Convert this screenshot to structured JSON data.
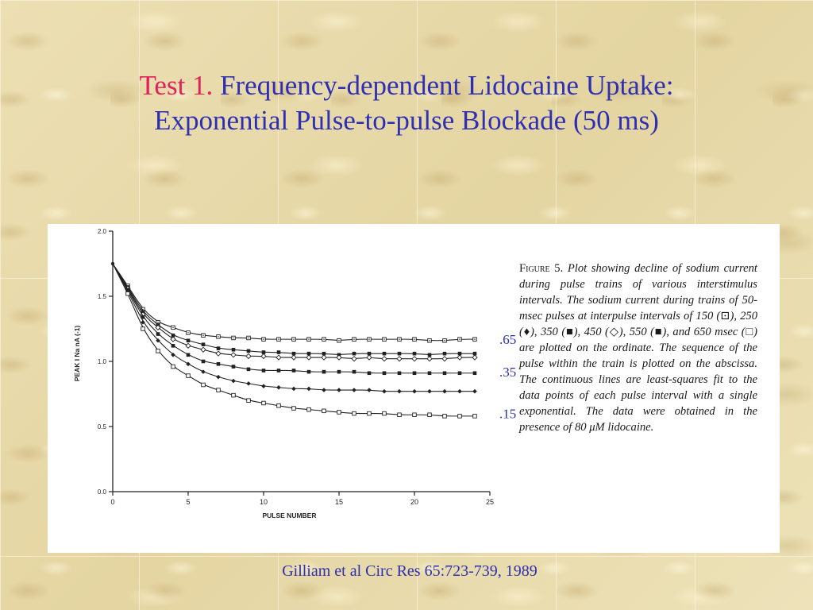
{
  "title": {
    "prefix": "Test 1.",
    "line1": "Frequency-dependent Lidocaine Uptake:",
    "line2": "Exponential Pulse-to-pulse Blockade  (50 ms)"
  },
  "figure": {
    "caption_lead": "Figure 5.",
    "caption_body": "Plot showing decline of sodium current during pulse trains of various interstimulus intervals. The sodium current during trains of 50-msec pulses at interpulse intervals of 150 (⊡), 250 (♦), 350 (■), 450 (◇), 550 (■), and 650 msec (□) are plotted on the ordinate. The sequence of the pulse within the train is plotted on the abscissa. The continuous lines are least-squares fit to the data points of each pulse interval with a single exponential. The data were obtained in the presence of 80 μM lidocaine."
  },
  "chart_data": {
    "type": "line",
    "xlabel": "PULSE NUMBER",
    "ylabel": "PEAK   I Na  nA (-1)",
    "xlim": [
      0,
      25
    ],
    "ylim": [
      0,
      2.0
    ],
    "xticks": [
      0,
      5,
      10,
      15,
      20,
      25
    ],
    "yticks": [
      0.0,
      0.5,
      1.0,
      1.5,
      2.0
    ],
    "xtick_labels": [
      "0",
      "5",
      "10",
      "15",
      "20",
      "25"
    ],
    "ytick_labels": [
      "0.0",
      "0.5",
      "1.0",
      "1.5",
      "2.0"
    ],
    "x": [
      1,
      2,
      3,
      4,
      5,
      6,
      7,
      8,
      9,
      10,
      11,
      12,
      13,
      14,
      15,
      16,
      17,
      18,
      19,
      20,
      21,
      22,
      23,
      24
    ],
    "series": [
      {
        "marker": "square-dot",
        "values": [
          1.58,
          1.4,
          1.3,
          1.26,
          1.22,
          1.2,
          1.19,
          1.18,
          1.18,
          1.17,
          1.17,
          1.17,
          1.17,
          1.17,
          1.16,
          1.17,
          1.17,
          1.17,
          1.17,
          1.17,
          1.16,
          1.16,
          1.17,
          1.17
        ]
      },
      {
        "marker": "filled-square",
        "values": [
          1.57,
          1.38,
          1.28,
          1.2,
          1.16,
          1.13,
          1.1,
          1.09,
          1.08,
          1.07,
          1.07,
          1.06,
          1.06,
          1.06,
          1.05,
          1.06,
          1.06,
          1.06,
          1.06,
          1.06,
          1.05,
          1.06,
          1.06,
          1.06
        ]
      },
      {
        "marker": "diamond-open",
        "values": [
          1.56,
          1.36,
          1.26,
          1.17,
          1.12,
          1.09,
          1.06,
          1.05,
          1.04,
          1.04,
          1.03,
          1.03,
          1.03,
          1.03,
          1.03,
          1.02,
          1.03,
          1.02,
          1.02,
          1.02,
          1.02,
          1.02,
          1.03,
          1.03
        ]
      },
      {
        "marker": "filled-square",
        "values": [
          1.55,
          1.34,
          1.21,
          1.12,
          1.05,
          1.0,
          0.98,
          0.96,
          0.94,
          0.93,
          0.93,
          0.93,
          0.92,
          0.92,
          0.92,
          0.92,
          0.91,
          0.91,
          0.91,
          0.91,
          0.91,
          0.91,
          0.91,
          0.91
        ]
      },
      {
        "marker": "filled-diamond",
        "values": [
          1.54,
          1.3,
          1.16,
          1.05,
          0.98,
          0.92,
          0.88,
          0.85,
          0.83,
          0.81,
          0.8,
          0.79,
          0.79,
          0.78,
          0.78,
          0.78,
          0.78,
          0.77,
          0.77,
          0.77,
          0.77,
          0.77,
          0.77,
          0.77
        ]
      },
      {
        "marker": "open-square",
        "values": [
          1.52,
          1.25,
          1.08,
          0.96,
          0.89,
          0.82,
          0.78,
          0.74,
          0.7,
          0.68,
          0.66,
          0.64,
          0.63,
          0.62,
          0.61,
          0.6,
          0.6,
          0.6,
          0.59,
          0.59,
          0.59,
          0.58,
          0.58,
          0.58
        ]
      }
    ],
    "annotations": [
      ".65",
      ".35",
      ".15"
    ],
    "annotation_color": "#2e2fb3"
  },
  "citation": "Gilliam et al   Circ Res  65:723-739, 1989"
}
